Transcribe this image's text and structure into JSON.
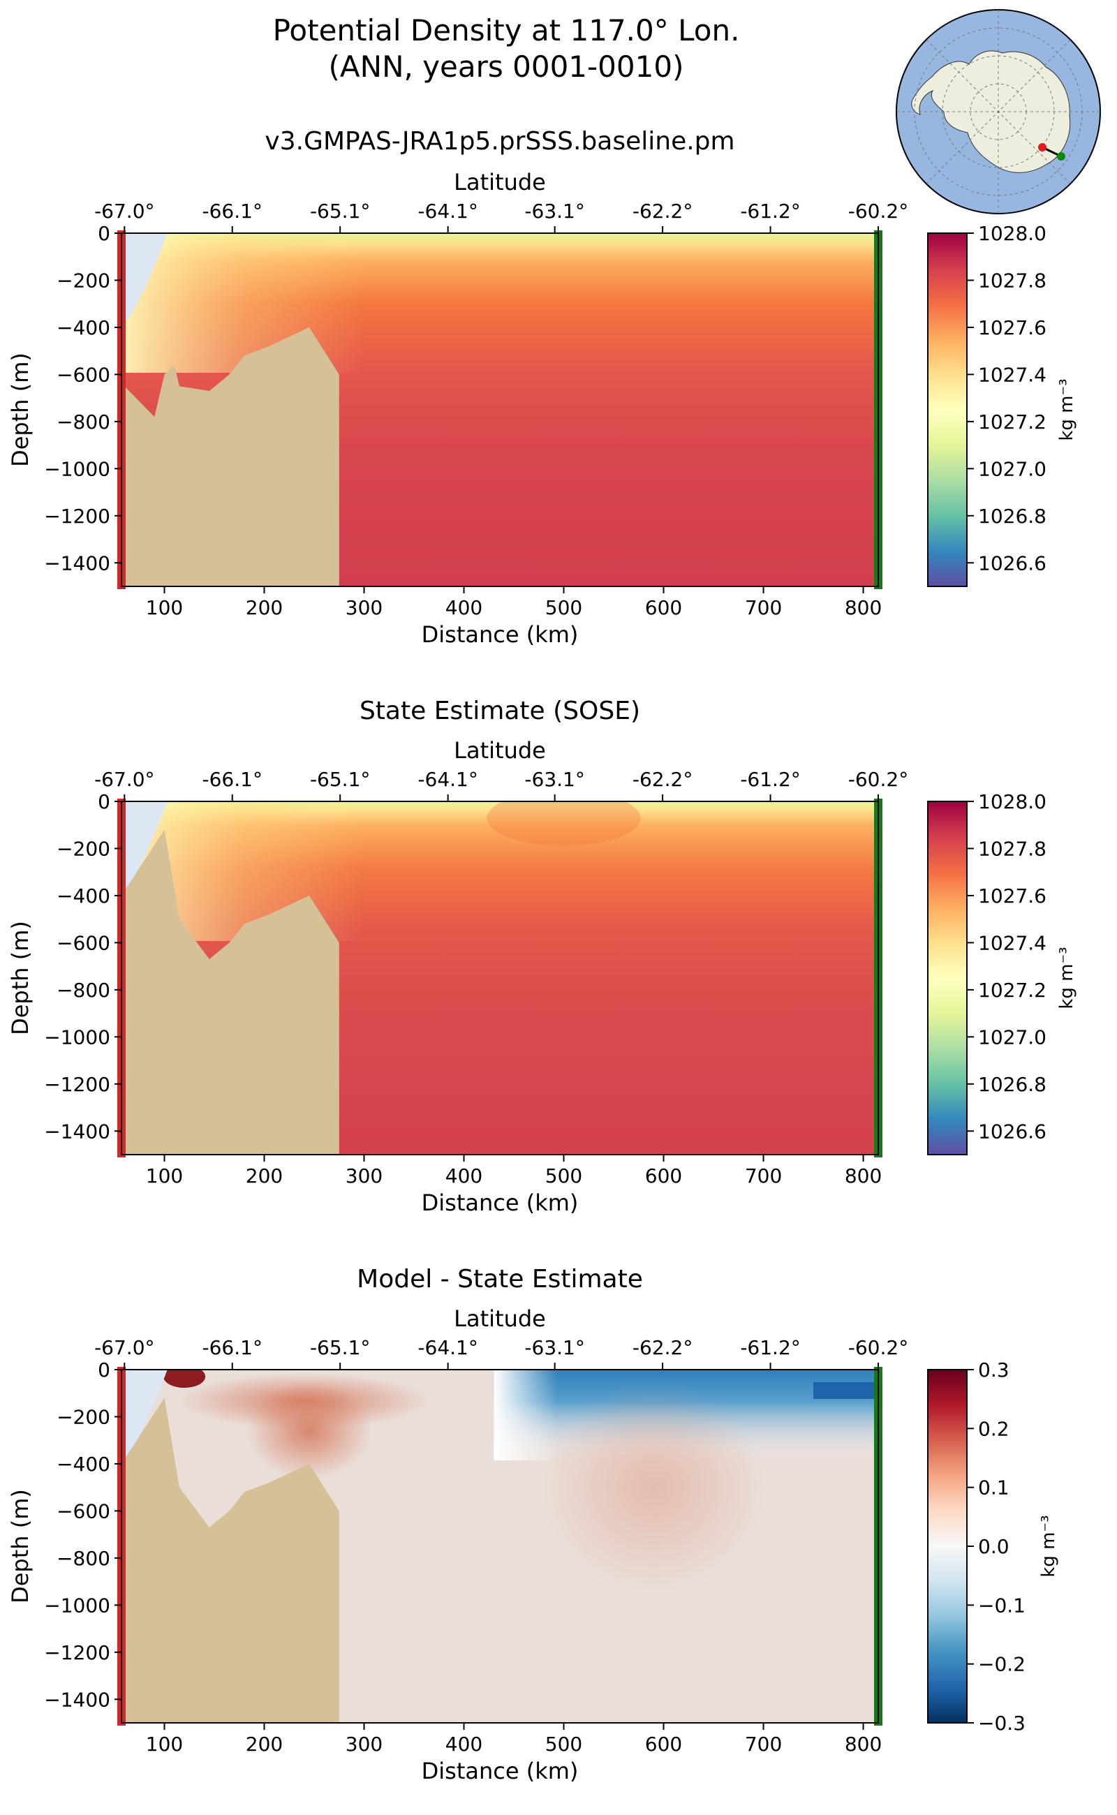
{
  "figure": {
    "title_line1": "Potential Density at 117.0° Lon.",
    "title_line2": "(ANN, years 0001-0010)"
  },
  "colors": {
    "land": "#d6c097",
    "ice_shelf": "#dde7f4",
    "start_marker": "#d62728",
    "end_marker": "#167a16",
    "ocean_map": "#97b6e0",
    "antarctica_map": "#eeeede"
  },
  "chart_data": [
    {
      "type": "heatmap",
      "title": "v3.GMPAS-JRA1p5.prSSS.baseline.pm",
      "xlabel": "Distance (km)",
      "ylabel": "Depth (m)",
      "secondary_xlabel": "Latitude",
      "xlim": [
        57,
        815
      ],
      "ylim": [
        -1500,
        0
      ],
      "x_ticks": [
        100,
        200,
        300,
        400,
        500,
        600,
        700,
        800
      ],
      "y_ticks": [
        0,
        -200,
        -400,
        -600,
        -800,
        -1000,
        -1200,
        -1400
      ],
      "latitude_tick_labels": [
        "-67.0°",
        "-66.1°",
        "-65.1°",
        "-64.1°",
        "-63.1°",
        "-62.2°",
        "-61.2°",
        "-60.2°"
      ],
      "latitude_tick_distance_km": [
        60,
        168,
        276,
        384,
        491,
        599,
        707,
        815
      ],
      "colorbar": {
        "label": "kg m⁻³",
        "range": [
          1026.5,
          1028.0
        ],
        "ticks": [
          1028.0,
          1027.8,
          1027.6,
          1027.4,
          1027.2,
          1027.0,
          1026.8,
          1026.6
        ],
        "colormap": "Spectral_r"
      },
      "field_summary": "surface about 1027.0-1027.2, increasing with depth to about 1027.85 below 600 m; lighter water along the shelf near 80-100 km",
      "bathymetry": {
        "distance_km": [
          60,
          90,
          100,
          110,
          115,
          145,
          165,
          180,
          205,
          245,
          275
        ],
        "depth_m": [
          -650,
          -780,
          -600,
          -560,
          -650,
          -670,
          -600,
          -520,
          -480,
          -400,
          -600
        ]
      }
    },
    {
      "type": "heatmap",
      "title": "State Estimate (SOSE)",
      "xlabel": "Distance (km)",
      "ylabel": "Depth (m)",
      "secondary_xlabel": "Latitude",
      "xlim": [
        57,
        815
      ],
      "ylim": [
        -1500,
        0
      ],
      "x_ticks": [
        100,
        200,
        300,
        400,
        500,
        600,
        700,
        800
      ],
      "y_ticks": [
        0,
        -200,
        -400,
        -600,
        -800,
        -1000,
        -1200,
        -1400
      ],
      "latitude_tick_labels": [
        "-67.0°",
        "-66.1°",
        "-65.1°",
        "-64.1°",
        "-63.1°",
        "-62.2°",
        "-61.2°",
        "-60.2°"
      ],
      "latitude_tick_distance_km": [
        60,
        168,
        276,
        384,
        491,
        599,
        707,
        815
      ],
      "colorbar": {
        "label": "kg m⁻³",
        "range": [
          1026.5,
          1028.0
        ],
        "ticks": [
          1028.0,
          1027.8,
          1027.6,
          1027.4,
          1027.2,
          1027.0,
          1026.8,
          1026.6
        ],
        "colormap": "Spectral_r"
      },
      "field_summary": "surface about 1027.0-1027.2, increasing with depth to about 1027.85; doming of denser water near 450-550 km",
      "bathymetry": {
        "distance_km": [
          60,
          100,
          115,
          145,
          165,
          180,
          205,
          245,
          275
        ],
        "depth_m": [
          -380,
          -120,
          -500,
          -670,
          -600,
          -520,
          -480,
          -400,
          -600
        ]
      }
    },
    {
      "type": "heatmap",
      "title": "Model - State Estimate",
      "xlabel": "Distance (km)",
      "ylabel": "Depth (m)",
      "secondary_xlabel": "Latitude",
      "xlim": [
        57,
        815
      ],
      "ylim": [
        -1500,
        0
      ],
      "x_ticks": [
        100,
        200,
        300,
        400,
        500,
        600,
        700,
        800
      ],
      "y_ticks": [
        0,
        -200,
        -400,
        -600,
        -800,
        -1000,
        -1200,
        -1400
      ],
      "latitude_tick_labels": [
        "-67.0°",
        "-66.1°",
        "-65.1°",
        "-64.1°",
        "-63.1°",
        "-62.2°",
        "-61.2°",
        "-60.2°"
      ],
      "latitude_tick_distance_km": [
        60,
        168,
        276,
        384,
        491,
        599,
        707,
        815
      ],
      "colorbar": {
        "label": "kg m⁻³",
        "range": [
          -0.3,
          0.3
        ],
        "ticks": [
          0.3,
          0.2,
          0.1,
          0.0,
          -0.1,
          -0.2,
          -0.3
        ],
        "colormap": "RdBu_r"
      },
      "field_summary": "negative near surface (about -0.15) from 450 to 815 km; positive (about +0.1) near 100-400 km in upper 400 m; near zero (+0.02) at depth",
      "bathymetry": {
        "distance_km": [
          60,
          100,
          115,
          145,
          165,
          180,
          205,
          245,
          275
        ],
        "depth_m": [
          -380,
          -120,
          -500,
          -670,
          -600,
          -520,
          -480,
          -400,
          -600
        ]
      }
    }
  ]
}
